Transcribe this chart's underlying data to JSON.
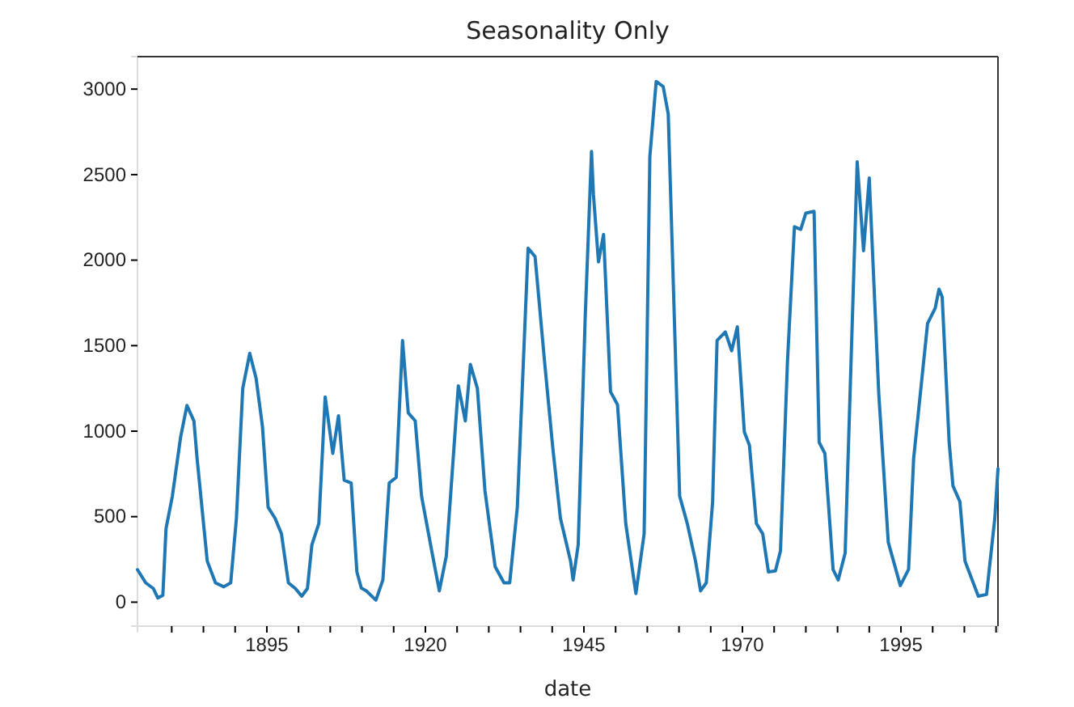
{
  "chart_data": {
    "type": "line",
    "title": "Seasonality Only",
    "xlabel": "date",
    "xlim": [
      1874.6,
      2010.3
    ],
    "ylim": [
      -140,
      3190
    ],
    "xticks": [
      {
        "value": 1880,
        "label": null
      },
      {
        "value": 1885,
        "label": null
      },
      {
        "value": 1890,
        "label": null
      },
      1895,
      {
        "value": 1900,
        "label": null
      },
      {
        "value": 1905,
        "label": null
      },
      {
        "value": 1910,
        "label": null
      },
      {
        "value": 1915,
        "label": null
      },
      1920,
      {
        "value": 1925,
        "label": null
      },
      {
        "value": 1930,
        "label": null
      },
      {
        "value": 1935,
        "label": null
      },
      {
        "value": 1940,
        "label": null
      },
      1945,
      {
        "value": 1950,
        "label": null
      },
      {
        "value": 1955,
        "label": null
      },
      {
        "value": 1960,
        "label": null
      },
      {
        "value": 1965,
        "label": null
      },
      1970,
      {
        "value": 1975,
        "label": null
      },
      {
        "value": 1980,
        "label": null
      },
      {
        "value": 1985,
        "label": null
      },
      {
        "value": 1990,
        "label": null
      },
      1995,
      {
        "value": 2000,
        "label": null
      },
      {
        "value": 2005,
        "label": null
      },
      {
        "value": 2010,
        "label": null
      }
    ],
    "yticks": [
      0,
      500,
      1000,
      1500,
      2000,
      2500,
      3000
    ],
    "grid": false,
    "marker": "none",
    "line_style": "solid",
    "series": [
      {
        "color": "#1f77b4",
        "x": [
          1874.6,
          1875.9,
          1877.1,
          1877.8,
          1878.6,
          1879.1,
          1880.1,
          1881.4,
          1882.4,
          1883.5,
          1884,
          1885.6,
          1886.9,
          1888.2,
          1889.3,
          1890.2,
          1891.2,
          1892.3,
          1893.3,
          1894.3,
          1895.2,
          1896.3,
          1897.3,
          1898.4,
          1899.5,
          1900.5,
          1901.4,
          1902.1,
          1903.2,
          1904.2,
          1905.4,
          1906.3,
          1907.2,
          1908.3,
          1909.2,
          1909.9,
          1910.7,
          1912.2,
          1913.3,
          1914.3,
          1915.4,
          1916.4,
          1917.3,
          1918.4,
          1919.4,
          1921,
          1922.2,
          1923.3,
          1925.2,
          1926.3,
          1927.1,
          1928.2,
          1929.4,
          1931,
          1932.4,
          1933.3,
          1934.5,
          1936.2,
          1937.3,
          1938.8,
          1940.1,
          1941.3,
          1942.9,
          1943.3,
          1944.1,
          1945.2,
          1946.2,
          1946.5,
          1947.3,
          1948.1,
          1949.2,
          1950.3,
          1951.6,
          1953.2,
          1954.5,
          1955.4,
          1956.4,
          1957.5,
          1958.3,
          1960.1,
          1961.3,
          1962.6,
          1963.4,
          1964.3,
          1965.3,
          1966,
          1967.3,
          1968.3,
          1969.2,
          1970.3,
          1971.1,
          1972.2,
          1973.2,
          1974.1,
          1975.2,
          1976,
          1977.1,
          1978.2,
          1979.2,
          1980,
          1981.3,
          1982.1,
          1983,
          1984.3,
          1985.1,
          1986.2,
          1988.1,
          1989.1,
          1990,
          1991.5,
          1993,
          1994.9,
          1996.2,
          1997,
          1999.2,
          2000.4,
          2001,
          2001.5,
          2002.6,
          2003.2,
          2004.3,
          2005.1,
          2007.2,
          2008.5,
          2009.8,
          2010.3
        ],
        "values": [
          190,
          113,
          80,
          25,
          40,
          430,
          620,
          965,
          1150,
          1060,
          840,
          240,
          113,
          90,
          113,
          490,
          1250,
          1455,
          1310,
          1030,
          555,
          490,
          400,
          113,
          80,
          35,
          80,
          335,
          460,
          1200,
          870,
          1090,
          713,
          697,
          177,
          82,
          66,
          12,
          130,
          697,
          730,
          1530,
          1107,
          1060,
          620,
          300,
          66,
          270,
          1265,
          1060,
          1390,
          1250,
          650,
          208,
          113,
          113,
          555,
          2070,
          2020,
          1405,
          900,
          490,
          240,
          130,
          335,
          1660,
          2635,
          2385,
          1990,
          2150,
          1230,
          1155,
          460,
          50,
          400,
          2605,
          3045,
          3015,
          2855,
          620,
          460,
          240,
          66,
          113,
          587,
          1530,
          1580,
          1470,
          1610,
          995,
          918,
          460,
          400,
          177,
          183,
          300,
          1405,
          2195,
          2180,
          2275,
          2285,
          935,
          870,
          190,
          130,
          287,
          2575,
          2055,
          2480,
          1220,
          350,
          97,
          192,
          840,
          1630,
          1720,
          1830,
          1785,
          935,
          680,
          587,
          240,
          35,
          45,
          490,
          780
        ]
      }
    ]
  }
}
